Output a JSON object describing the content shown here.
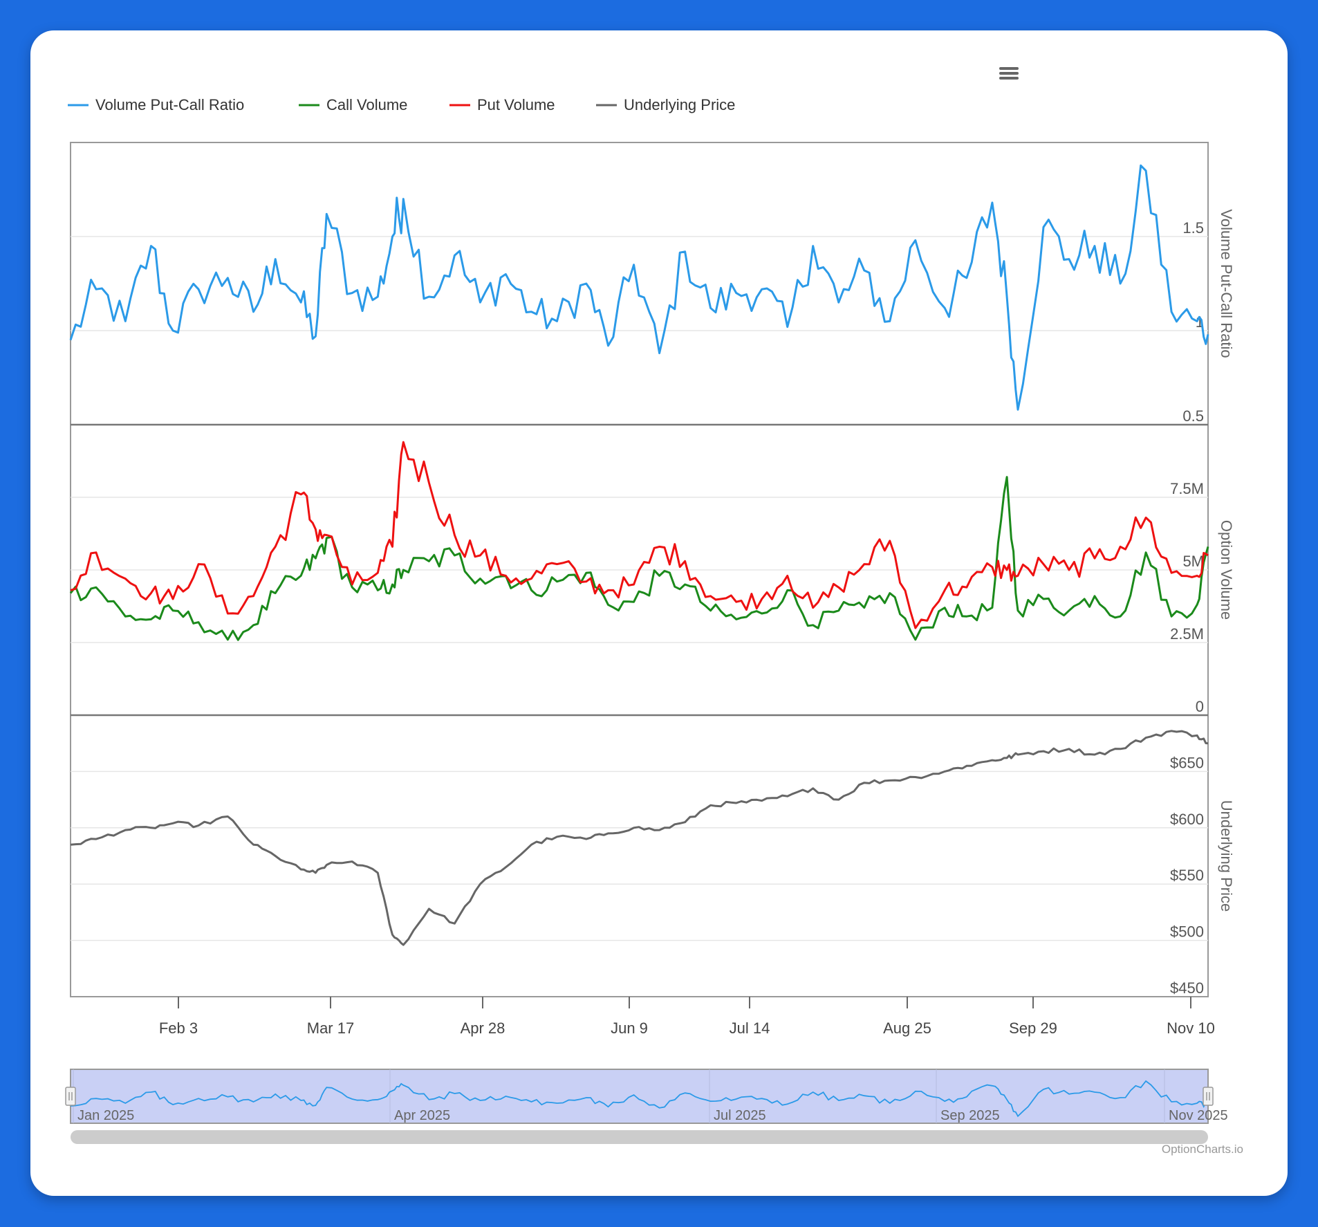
{
  "chart_data": {
    "type": "line",
    "legend": {
      "placement": "top-left",
      "items": [
        {
          "name": "Volume Put-Call Ratio",
          "color": "#2b9ae8"
        },
        {
          "name": "Call Volume",
          "color": "#1b8a1b"
        },
        {
          "name": "Put Volume",
          "color": "#ee1111"
        },
        {
          "name": "Underlying Price",
          "color": "#666666"
        }
      ]
    },
    "x_axis": {
      "ticks": [
        "Feb 3",
        "Mar 17",
        "Apr 28",
        "Jun 9",
        "Jul 14",
        "Aug 25",
        "Sep 29",
        "Nov 10"
      ],
      "range": [
        "2025-01-06",
        "2025-11-13"
      ]
    },
    "panels": [
      {
        "ylabel": "Volume Put-Call Ratio",
        "yticks": [
          "1.5",
          "1",
          "0.5"
        ],
        "ylim": [
          0.5,
          2.0
        ],
        "series": [
          {
            "name": "Volume Put-Call Ratio",
            "color": "#2b9ae8",
            "x": [
              "2025-01-06",
              "2025-01-13",
              "2025-01-21",
              "2025-01-28",
              "2025-02-03",
              "2025-02-10",
              "2025-02-18",
              "2025-02-25",
              "2025-03-03",
              "2025-03-10",
              "2025-03-14",
              "2025-03-17",
              "2025-03-24",
              "2025-03-31",
              "2025-04-04",
              "2025-04-07",
              "2025-04-14",
              "2025-04-21",
              "2025-04-28",
              "2025-05-05",
              "2025-05-12",
              "2025-05-19",
              "2025-05-27",
              "2025-06-02",
              "2025-06-09",
              "2025-06-16",
              "2025-06-23",
              "2025-06-30",
              "2025-07-07",
              "2025-07-14",
              "2025-07-21",
              "2025-07-28",
              "2025-08-04",
              "2025-08-11",
              "2025-08-18",
              "2025-08-25",
              "2025-09-02",
              "2025-09-08",
              "2025-09-15",
              "2025-09-19",
              "2025-09-22",
              "2025-09-29",
              "2025-10-06",
              "2025-10-13",
              "2025-10-20",
              "2025-10-27",
              "2025-11-03",
              "2025-11-10",
              "2025-11-13"
            ],
            "values": [
              0.95,
              1.22,
              1.05,
              1.45,
              1.0,
              1.22,
              1.28,
              1.1,
              1.38,
              1.15,
              0.97,
              1.62,
              1.2,
              1.18,
              1.5,
              1.7,
              1.18,
              1.4,
              1.15,
              1.3,
              1.1,
              1.05,
              1.25,
              0.92,
              1.35,
              0.88,
              1.42,
              1.12,
              1.2,
              1.22,
              1.02,
              1.45,
              1.15,
              1.32,
              1.05,
              1.48,
              1.12,
              1.28,
              1.68,
              1.18,
              0.58,
              1.55,
              1.38,
              1.45,
              1.25,
              1.85,
              1.1,
              1.05,
              0.98
            ]
          }
        ]
      },
      {
        "ylabel": "Option Volume",
        "yticks": [
          "7.5M",
          "5M",
          "2.5M",
          "0"
        ],
        "ylim": [
          0,
          10000000
        ],
        "series": [
          {
            "name": "Call Volume",
            "color": "#1b8a1b",
            "x": [
              "2025-01-06",
              "2025-01-13",
              "2025-01-21",
              "2025-01-28",
              "2025-02-03",
              "2025-02-10",
              "2025-02-18",
              "2025-02-25",
              "2025-03-03",
              "2025-03-10",
              "2025-03-14",
              "2025-03-17",
              "2025-03-24",
              "2025-03-31",
              "2025-04-04",
              "2025-04-07",
              "2025-04-14",
              "2025-04-21",
              "2025-04-28",
              "2025-05-05",
              "2025-05-12",
              "2025-05-19",
              "2025-05-27",
              "2025-06-02",
              "2025-06-09",
              "2025-06-16",
              "2025-06-23",
              "2025-06-30",
              "2025-07-07",
              "2025-07-14",
              "2025-07-21",
              "2025-07-28",
              "2025-08-04",
              "2025-08-11",
              "2025-08-18",
              "2025-08-25",
              "2025-09-02",
              "2025-09-08",
              "2025-09-15",
              "2025-09-19",
              "2025-09-22",
              "2025-09-29",
              "2025-10-06",
              "2025-10-13",
              "2025-10-20",
              "2025-10-27",
              "2025-11-03",
              "2025-11-10",
              "2025-11-13"
            ],
            "values": [
              4200000,
              4400000,
              3400000,
              3300000,
              3600000,
              3200000,
              2600000,
              3100000,
              4200000,
              4800000,
              5400000,
              6100000,
              4400000,
              4300000,
              4500000,
              5000000,
              5300000,
              5500000,
              4700000,
              4800000,
              4300000,
              4600000,
              4900000,
              3800000,
              3900000,
              4800000,
              4500000,
              3600000,
              3300000,
              3500000,
              4300000,
              3100000,
              3600000,
              3700000,
              4200000,
              2600000,
              3700000,
              3400000,
              3700000,
              8200000,
              3600000,
              4000000,
              3600000,
              4100000,
              3400000,
              5600000,
              3400000,
              3800000,
              5800000
            ]
          },
          {
            "name": "Put Volume",
            "color": "#ee1111",
            "x": [
              "2025-01-06",
              "2025-01-13",
              "2025-01-21",
              "2025-01-28",
              "2025-02-03",
              "2025-02-10",
              "2025-02-18",
              "2025-02-25",
              "2025-03-03",
              "2025-03-10",
              "2025-03-14",
              "2025-03-17",
              "2025-03-24",
              "2025-03-31",
              "2025-04-04",
              "2025-04-07",
              "2025-04-14",
              "2025-04-21",
              "2025-04-28",
              "2025-05-05",
              "2025-05-12",
              "2025-05-19",
              "2025-05-27",
              "2025-06-02",
              "2025-06-09",
              "2025-06-16",
              "2025-06-23",
              "2025-06-30",
              "2025-07-07",
              "2025-07-14",
              "2025-07-21",
              "2025-07-28",
              "2025-08-04",
              "2025-08-11",
              "2025-08-18",
              "2025-08-25",
              "2025-09-02",
              "2025-09-08",
              "2025-09-15",
              "2025-09-19",
              "2025-09-22",
              "2025-09-29",
              "2025-10-06",
              "2025-10-13",
              "2025-10-20",
              "2025-10-27",
              "2025-11-03",
              "2025-11-10",
              "2025-11-13"
            ],
            "values": [
              4300000,
              5600000,
              4700000,
              4200000,
              4000000,
              5200000,
              3500000,
              4100000,
              5800000,
              7600000,
              6400000,
              6200000,
              4500000,
              4900000,
              5800000,
              9400000,
              8000000,
              6200000,
              5500000,
              4800000,
              4700000,
              5200000,
              4600000,
              4300000,
              4500000,
              5800000,
              5300000,
              4100000,
              3900000,
              4000000,
              4800000,
              3700000,
              4400000,
              5200000,
              6000000,
              3000000,
              4300000,
              4400000,
              5100000,
              5000000,
              4800000,
              5200000,
              5000000,
              5400000,
              5800000,
              6800000,
              4900000,
              4800000,
              5500000
            ]
          }
        ]
      },
      {
        "ylabel": "Underlying Price",
        "yticks": [
          "$650",
          "$600",
          "$550",
          "$500",
          "$450"
        ],
        "ylim": [
          450,
          700
        ],
        "series": [
          {
            "name": "Underlying Price",
            "color": "#666666",
            "x": [
              "2025-01-06",
              "2025-01-13",
              "2025-01-21",
              "2025-01-28",
              "2025-02-03",
              "2025-02-10",
              "2025-02-18",
              "2025-02-25",
              "2025-03-03",
              "2025-03-10",
              "2025-03-14",
              "2025-03-17",
              "2025-03-24",
              "2025-03-31",
              "2025-04-04",
              "2025-04-07",
              "2025-04-14",
              "2025-04-21",
              "2025-04-28",
              "2025-05-05",
              "2025-05-12",
              "2025-05-19",
              "2025-05-27",
              "2025-06-02",
              "2025-06-09",
              "2025-06-16",
              "2025-06-23",
              "2025-06-30",
              "2025-07-07",
              "2025-07-14",
              "2025-07-21",
              "2025-07-28",
              "2025-08-04",
              "2025-08-11",
              "2025-08-18",
              "2025-08-25",
              "2025-09-02",
              "2025-09-08",
              "2025-09-15",
              "2025-09-19",
              "2025-09-22",
              "2025-09-29",
              "2025-10-06",
              "2025-10-13",
              "2025-10-20",
              "2025-10-27",
              "2025-11-03",
              "2025-11-10",
              "2025-11-13"
            ],
            "values": [
              585,
              590,
              598,
              600,
              604,
              602,
              610,
              585,
              575,
              563,
              560,
              567,
              570,
              560,
              505,
              496,
              528,
              515,
              550,
              565,
              585,
              592,
              590,
              595,
              600,
              598,
              605,
              620,
              622,
              624,
              628,
              635,
              625,
              640,
              642,
              645,
              650,
              655,
              660,
              662,
              665,
              668,
              670,
              665,
              670,
              680,
              686,
              682,
              675
            ]
          }
        ]
      }
    ],
    "navigator": {
      "labels": [
        "Jan 2025",
        "Apr 2025",
        "Jul 2025",
        "Sep 2025",
        "Nov 2025"
      ]
    },
    "grid": true,
    "credits": "OptionCharts.io"
  }
}
